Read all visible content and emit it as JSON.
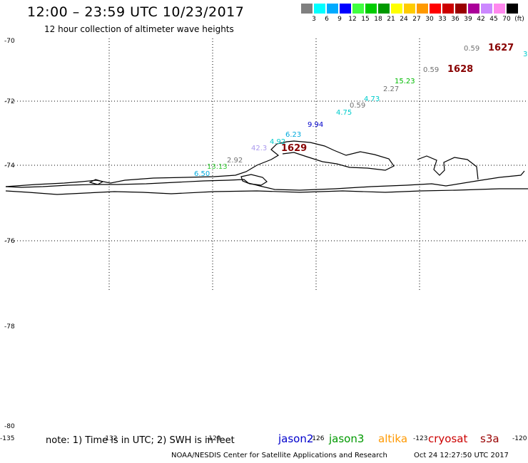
{
  "header": {
    "title": "12:00 – 23:59 UTC 10/23/2017",
    "subtitle": "12 hour collection of altimeter wave heights"
  },
  "color_scale": {
    "colors": [
      "#808080",
      "#00ffff",
      "#00aaff",
      "#0000ff",
      "#40ff40",
      "#00cc00",
      "#009900",
      "#ffff00",
      "#ffcc00",
      "#ff9900",
      "#ff0000",
      "#cc0000",
      "#990000",
      "#aa0099",
      "#cc88ff",
      "#ff88ee",
      "#000000"
    ],
    "labels": [
      "3",
      "6",
      "9",
      "12",
      "15",
      "18",
      "21",
      "24",
      "27",
      "30",
      "33",
      "36",
      "39",
      "42",
      "45",
      "70"
    ],
    "unit": "(ft)"
  },
  "latitude_labels": [
    "-70",
    "-72",
    "-74",
    "-76",
    "-78",
    "-80"
  ],
  "longitude_labels": [
    "-135",
    "-132",
    "-129",
    "-126",
    "-123",
    "-120"
  ],
  "wave_labels": [
    {
      "text": "0.59",
      "color": "#707070"
    },
    {
      "text": "3",
      "color": "#00cccc"
    },
    {
      "text": "0.59",
      "color": "#707070"
    },
    {
      "text": "15.23",
      "color": "#00bb00"
    },
    {
      "text": "2.27",
      "color": "#707070"
    },
    {
      "text": "4.73",
      "color": "#00cccc"
    },
    {
      "text": "0.59",
      "color": "#707070"
    },
    {
      "text": "4.75",
      "color": "#00cccc"
    },
    {
      "text": "9.94",
      "color": "#0000cc"
    },
    {
      "text": "6.23",
      "color": "#00aadd"
    },
    {
      "text": "4.92",
      "color": "#00cccc"
    },
    {
      "text": "42.3",
      "color": "#aa99ee"
    },
    {
      "text": "2.92",
      "color": "#707070"
    },
    {
      "text": "13.13",
      "color": "#33cc33"
    },
    {
      "text": "6.50",
      "color": "#00aadd"
    }
  ],
  "track_labels": [
    {
      "text": "1627",
      "color": "#880000"
    },
    {
      "text": "1628",
      "color": "#880000"
    },
    {
      "text": "1629",
      "color": "#880000"
    }
  ],
  "footer": {
    "note": "note:  1) Time is in UTC;  2) SWH is in feet",
    "satellites": [
      {
        "name": "jason2",
        "color": "#0000cc"
      },
      {
        "name": "jason3",
        "color": "#009900"
      },
      {
        "name": "altika",
        "color": "#ff9900"
      },
      {
        "name": "cryosat",
        "color": "#cc0000"
      },
      {
        "name": "s3a",
        "color": "#990000"
      }
    ],
    "credit": "NOAA/NESDIS Center for Satellite Applications and Research",
    "timestamp": "Oct 24 12:27:50 UTC 2017"
  }
}
